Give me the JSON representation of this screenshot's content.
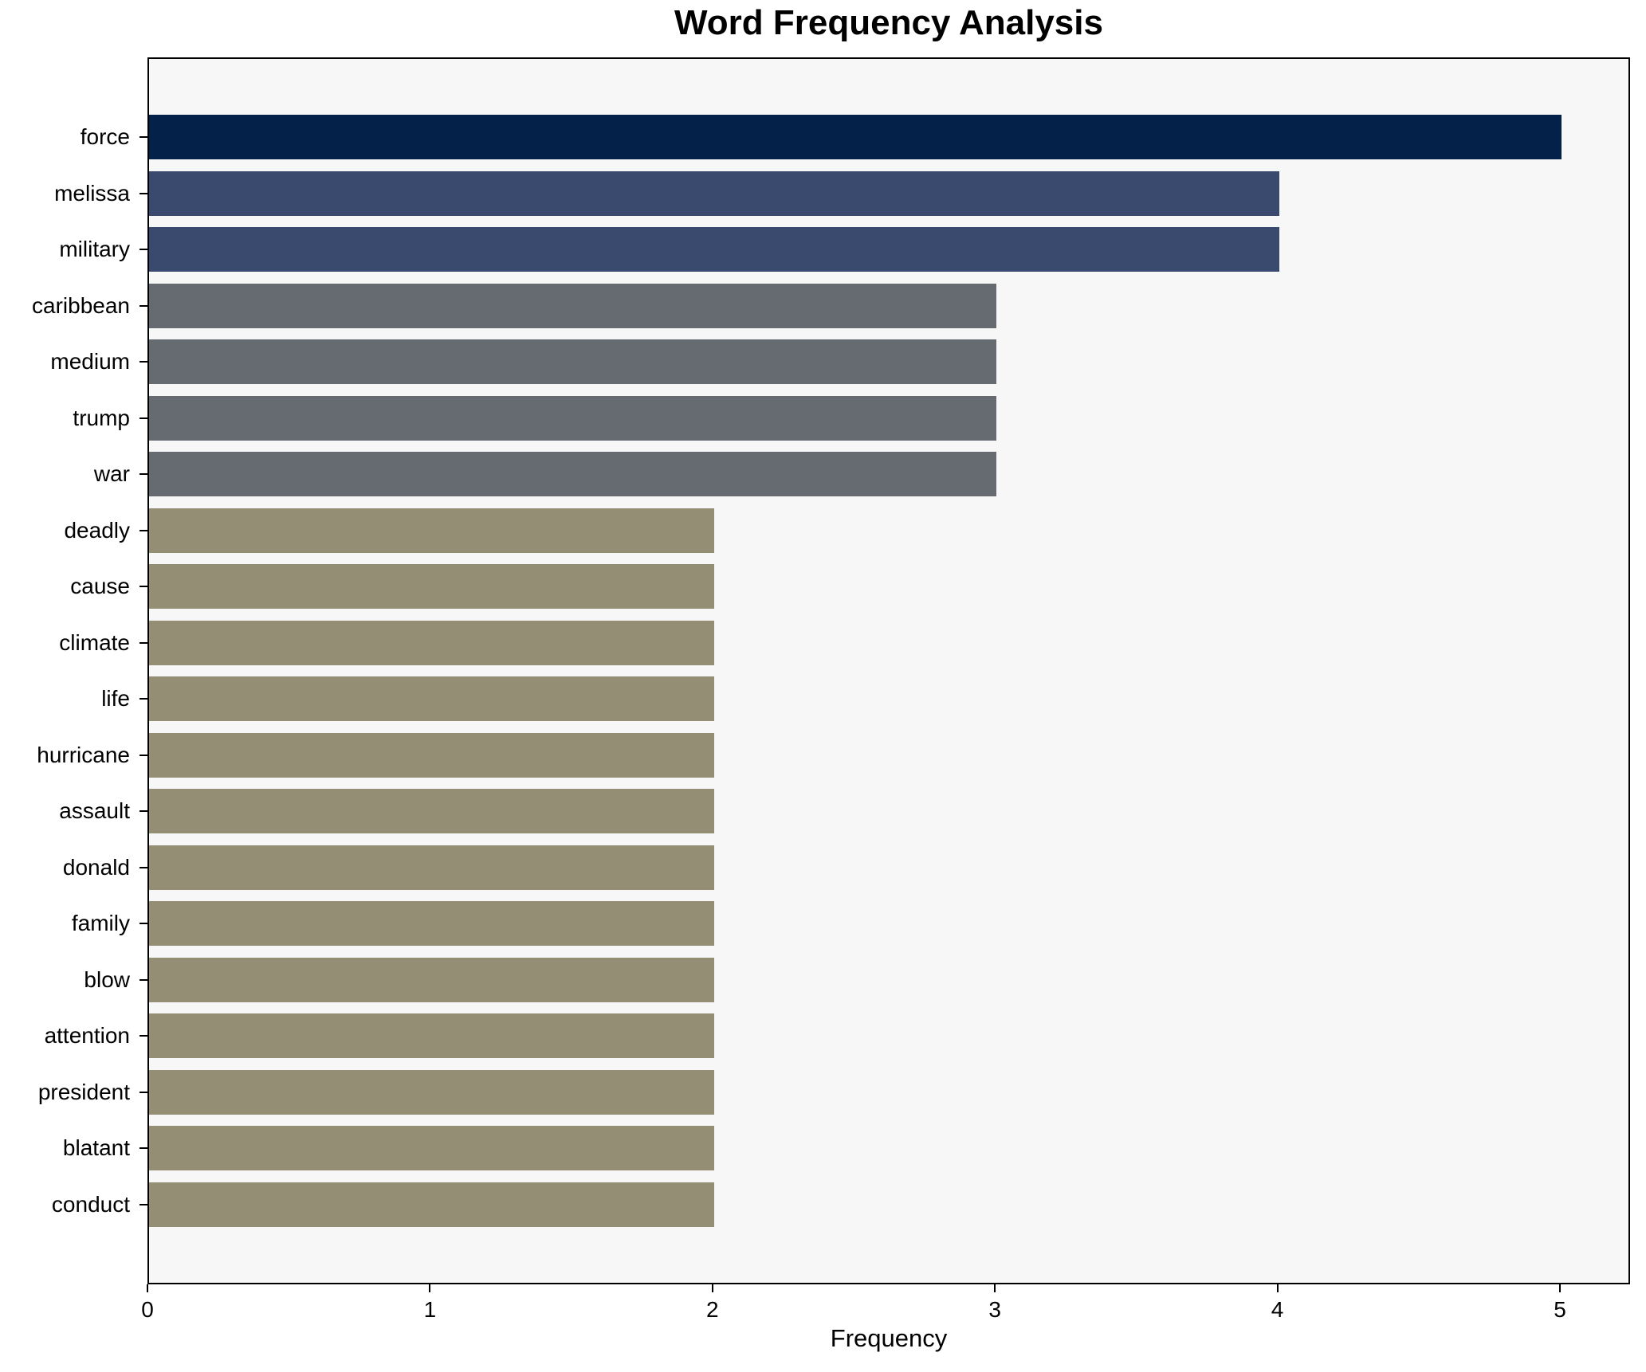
{
  "figure": {
    "background_color": "#ffffff",
    "plot_background_color": "#f7f7f7",
    "spine_color": "#000000"
  },
  "chart_data": {
    "type": "bar",
    "orientation": "horizontal",
    "title": "Word Frequency Analysis",
    "xlabel": "Frequency",
    "ylabel": "",
    "categories": [
      "force",
      "melissa",
      "military",
      "caribbean",
      "medium",
      "trump",
      "war",
      "deadly",
      "cause",
      "climate",
      "life",
      "hurricane",
      "assault",
      "donald",
      "family",
      "blow",
      "attention",
      "president",
      "blatant",
      "conduct"
    ],
    "values": [
      5,
      4,
      4,
      3,
      3,
      3,
      3,
      2,
      2,
      2,
      2,
      2,
      2,
      2,
      2,
      2,
      2,
      2,
      2,
      2
    ],
    "bar_colors": [
      "#032149",
      "#3a4a6e",
      "#3a4a6e",
      "#666a71",
      "#666a71",
      "#666a71",
      "#666a71",
      "#948e74",
      "#948e74",
      "#948e74",
      "#948e74",
      "#948e74",
      "#948e74",
      "#948e74",
      "#948e74",
      "#948e74",
      "#948e74",
      "#948e74",
      "#948e74",
      "#948e74"
    ],
    "color_legend": {
      "frequency_5": "#032149",
      "frequency_4": "#3a4a6e",
      "frequency_3": "#666a71",
      "frequency_2": "#948e74"
    },
    "xticks": [
      "0",
      "1",
      "2",
      "3",
      "4",
      "5"
    ],
    "xlim": [
      0,
      5.25
    ],
    "grid": false,
    "legend_position": "none"
  }
}
